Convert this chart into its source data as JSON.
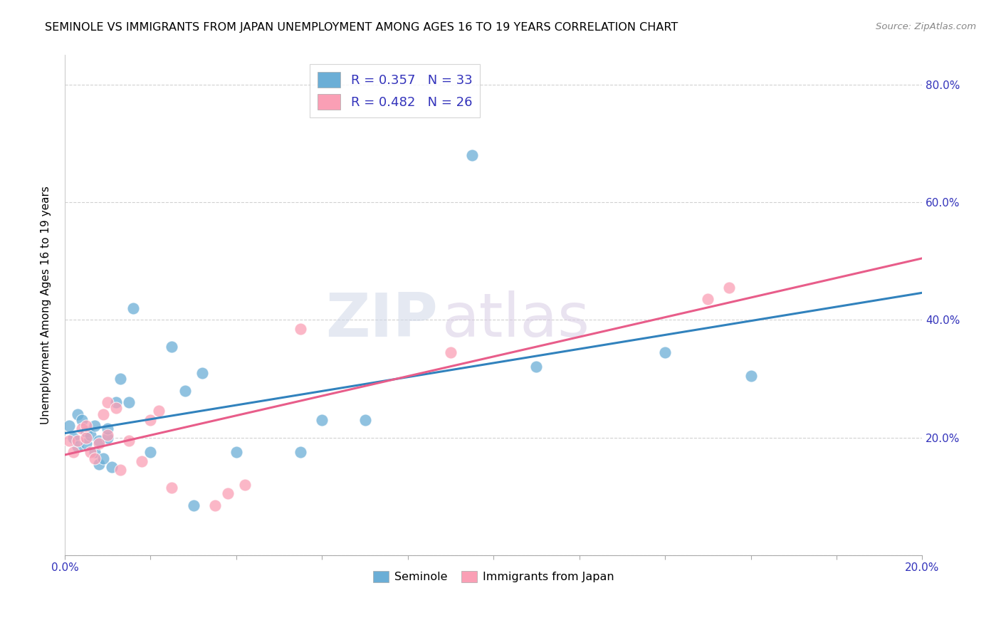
{
  "title": "SEMINOLE VS IMMIGRANTS FROM JAPAN UNEMPLOYMENT AMONG AGES 16 TO 19 YEARS CORRELATION CHART",
  "source": "Source: ZipAtlas.com",
  "ylabel": "Unemployment Among Ages 16 to 19 years",
  "xlim": [
    0.0,
    0.2
  ],
  "ylim": [
    0.0,
    0.85
  ],
  "xticks": [
    0.0,
    0.02,
    0.04,
    0.06,
    0.08,
    0.1,
    0.12,
    0.14,
    0.16,
    0.18,
    0.2
  ],
  "yticks": [
    0.0,
    0.2,
    0.4,
    0.6,
    0.8
  ],
  "ytick_labels": [
    "",
    "20.0%",
    "40.0%",
    "60.0%",
    "80.0%"
  ],
  "xtick_labels": [
    "0.0%",
    "",
    "",
    "",
    "",
    "",
    "",
    "",
    "",
    "",
    "20.0%"
  ],
  "seminole_color": "#6baed6",
  "japan_color": "#fa9fb5",
  "trend_seminole_color": "#3182bd",
  "trend_japan_color": "#e85d8a",
  "R_seminole": 0.357,
  "N_seminole": 33,
  "R_japan": 0.482,
  "N_japan": 26,
  "seminole_x": [
    0.001,
    0.002,
    0.003,
    0.003,
    0.004,
    0.005,
    0.005,
    0.006,
    0.007,
    0.007,
    0.008,
    0.008,
    0.009,
    0.01,
    0.01,
    0.011,
    0.012,
    0.013,
    0.015,
    0.016,
    0.02,
    0.025,
    0.028,
    0.03,
    0.032,
    0.04,
    0.055,
    0.06,
    0.07,
    0.095,
    0.11,
    0.14,
    0.16
  ],
  "seminole_y": [
    0.22,
    0.2,
    0.185,
    0.24,
    0.23,
    0.21,
    0.19,
    0.205,
    0.175,
    0.22,
    0.155,
    0.195,
    0.165,
    0.2,
    0.215,
    0.15,
    0.26,
    0.3,
    0.26,
    0.42,
    0.175,
    0.355,
    0.28,
    0.085,
    0.31,
    0.175,
    0.175,
    0.23,
    0.23,
    0.68,
    0.32,
    0.345,
    0.305
  ],
  "japan_x": [
    0.001,
    0.002,
    0.003,
    0.004,
    0.005,
    0.005,
    0.006,
    0.007,
    0.008,
    0.009,
    0.01,
    0.01,
    0.012,
    0.013,
    0.015,
    0.018,
    0.02,
    0.022,
    0.025,
    0.035,
    0.038,
    0.042,
    0.055,
    0.09,
    0.15,
    0.155
  ],
  "japan_y": [
    0.195,
    0.175,
    0.195,
    0.215,
    0.2,
    0.22,
    0.175,
    0.165,
    0.19,
    0.24,
    0.26,
    0.205,
    0.25,
    0.145,
    0.195,
    0.16,
    0.23,
    0.245,
    0.115,
    0.085,
    0.105,
    0.12,
    0.385,
    0.345,
    0.435,
    0.455
  ],
  "watermark_zip": "ZIP",
  "watermark_atlas": "atlas",
  "background_color": "#ffffff",
  "grid_color": "#cccccc"
}
